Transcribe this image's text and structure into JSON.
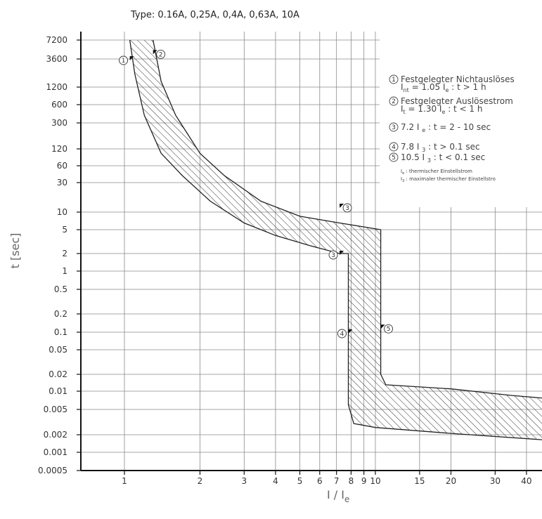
{
  "chart_data": {
    "type": "line",
    "title": "Type: 0.16A, 0,25A, 0,4A, 0,63A, 10A",
    "xlabel": "I / I",
    "xlabel_sub": "e",
    "ylabel": "t [sec]",
    "x_scale": "log",
    "y_scale": "log",
    "xlim": [
      0.7,
      50
    ],
    "ylim": [
      0.0005,
      10000
    ],
    "grid": true,
    "x_ticks": [
      "1",
      "2",
      "3",
      "4",
      "5",
      "6",
      "7",
      "8",
      "9",
      "10",
      "15",
      "20",
      "30",
      "40"
    ],
    "y_ticks": [
      "7200",
      "3600",
      "1200",
      "600",
      "300",
      "120",
      "60",
      "30",
      "10",
      "5",
      "2",
      "1",
      "0.5",
      "0.2",
      "0.1",
      "0.05",
      "0.02",
      "0.01",
      "0.005",
      "0.002",
      "0.001",
      "0.0005"
    ],
    "band": {
      "lower_curve": [
        {
          "x": 1.05,
          "y": 7200
        },
        {
          "x": 1.1,
          "y": 2000
        },
        {
          "x": 1.2,
          "y": 400
        },
        {
          "x": 1.4,
          "y": 100
        },
        {
          "x": 1.7,
          "y": 40
        },
        {
          "x": 2.2,
          "y": 15
        },
        {
          "x": 3.0,
          "y": 6.5
        },
        {
          "x": 4.0,
          "y": 4.0
        },
        {
          "x": 5.5,
          "y": 2.7
        },
        {
          "x": 7.2,
          "y": 2.0
        },
        {
          "x": 7.8,
          "y": 2.0
        },
        {
          "x": 7.8,
          "y": 0.006
        },
        {
          "x": 8.2,
          "y": 0.003
        },
        {
          "x": 10,
          "y": 0.0026
        },
        {
          "x": 20,
          "y": 0.0021
        },
        {
          "x": 50,
          "y": 0.0016
        }
      ],
      "upper_curve": [
        {
          "x": 1.3,
          "y": 7200
        },
        {
          "x": 1.4,
          "y": 1500
        },
        {
          "x": 1.6,
          "y": 400
        },
        {
          "x": 2.0,
          "y": 100
        },
        {
          "x": 2.5,
          "y": 40
        },
        {
          "x": 3.5,
          "y": 15
        },
        {
          "x": 5.0,
          "y": 8.5
        },
        {
          "x": 7.2,
          "y": 6.5
        },
        {
          "x": 10.5,
          "y": 5
        },
        {
          "x": 10.5,
          "y": 0.02
        },
        {
          "x": 11,
          "y": 0.013
        },
        {
          "x": 20,
          "y": 0.011
        },
        {
          "x": 35,
          "y": 0.0085
        },
        {
          "x": 50,
          "y": 0.0075
        }
      ]
    },
    "markers": [
      {
        "label": "1",
        "x": 1.05,
        "y": 3600
      },
      {
        "label": "2",
        "x": 1.3,
        "y": 4500
      },
      {
        "label": "3",
        "x": 7.2,
        "y": 10
      },
      {
        "label": "3",
        "x": 7.2,
        "y": 2
      },
      {
        "label": "4",
        "x": 7.8,
        "y": 0.1
      },
      {
        "label": "5",
        "x": 10.5,
        "y": 0.12
      }
    ],
    "legend": {
      "placement": "top-right",
      "items": [
        {
          "num": "1",
          "line1": "Festgelegter Nichtauslöses",
          "line2": "I  = 1.05 I  : t > 1 h",
          "line2_subs": [
            "nt",
            "e"
          ]
        },
        {
          "num": "2",
          "line1": "Festgelegter Auslösestrom",
          "line2": "I  = 1.30 I  : t < 1 h",
          "line2_subs": [
            "t",
            "e"
          ]
        },
        {
          "num": "3",
          "line1": "7.2 I  : t = 2 - 10 sec",
          "line1_sub": "e"
        },
        {
          "num": "4",
          "line1": "7.8 I  : t > 0.1 sec",
          "line1_sub": "3"
        },
        {
          "num": "5",
          "line1": "10.5 I  : t < 0.1 sec",
          "line1_sub": "3"
        }
      ],
      "notes": [
        {
          "sym": "I",
          "sub": "e",
          "text": ": thermischer Einstellstrom"
        },
        {
          "sym": "I",
          "sub": "3",
          "text": ": maximaler thermischer Einstellstro"
        }
      ]
    },
    "colors": {
      "grid": "#8a8a8a",
      "curve": "#222222",
      "hatch": "#333333",
      "axis": "#111111"
    }
  }
}
